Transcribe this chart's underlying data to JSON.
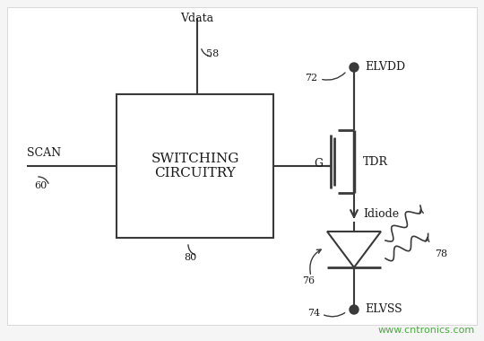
{
  "bg_color": "#f5f5f5",
  "line_color": "#3a3a3a",
  "text_color": "#1a1a1a",
  "watermark_color": "#4aaa40",
  "watermark": "www.cntronics.com",
  "box_label1": "SWITCHING",
  "box_label2": "CIRCUITRY",
  "scan_label": "SCAN",
  "scan_ref": "60",
  "vdata_label": "Vdata",
  "vdata_ref": "58",
  "box_ref": "80",
  "elvdd_label": "ELVDD",
  "elvdd_ref": "72",
  "elvss_label": "ELVSS",
  "elvss_ref": "74",
  "tdr_label": "TDR",
  "g_label": "G",
  "idiode_label": "Idiode",
  "oled_ref": "76",
  "light_ref": "78"
}
